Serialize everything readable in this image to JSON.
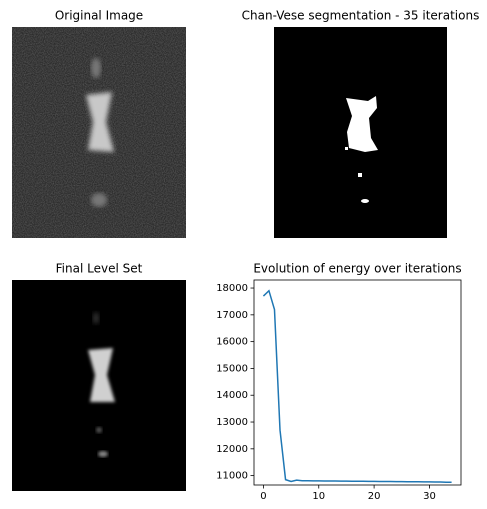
{
  "chart_data": [
    {
      "type": "image",
      "title": "Original Image"
    },
    {
      "type": "image",
      "title": "Chan-Vese segmentation - 35 iterations"
    },
    {
      "type": "image",
      "title": "Final Level Set"
    },
    {
      "type": "line",
      "title": "Evolution of energy over iterations",
      "x": [
        0,
        1,
        2,
        3,
        4,
        5,
        6,
        7,
        8,
        9,
        10,
        11,
        12,
        13,
        14,
        15,
        16,
        17,
        18,
        19,
        20,
        21,
        22,
        23,
        24,
        25,
        26,
        27,
        28,
        29,
        30,
        31,
        32,
        33,
        34
      ],
      "values": [
        17700,
        17900,
        17200,
        12700,
        10850,
        10780,
        10830,
        10810,
        10810,
        10805,
        10805,
        10800,
        10800,
        10800,
        10795,
        10795,
        10790,
        10790,
        10790,
        10785,
        10785,
        10780,
        10780,
        10780,
        10775,
        10775,
        10770,
        10770,
        10770,
        10765,
        10765,
        10760,
        10760,
        10755,
        10755
      ],
      "color": "#1f77b4",
      "xlim": [
        -1.7,
        35.7
      ],
      "ylim": [
        10650,
        18300
      ],
      "xticks": [
        0,
        10,
        20,
        30
      ],
      "yticks": [
        11000,
        12000,
        13000,
        14000,
        15000,
        16000,
        17000,
        18000
      ]
    }
  ]
}
